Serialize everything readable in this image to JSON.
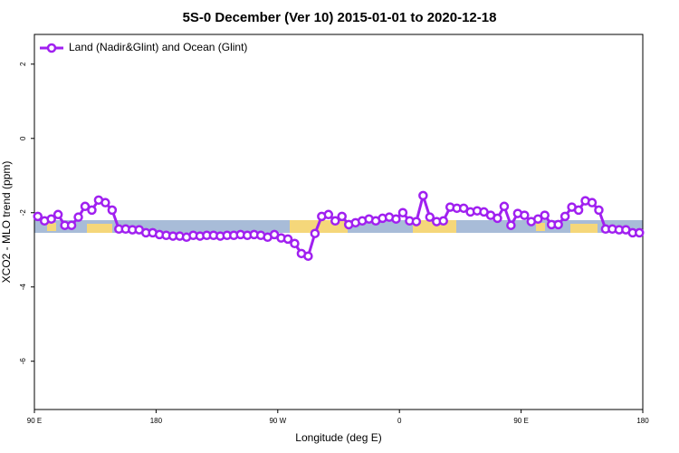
{
  "chart_data": {
    "type": "line",
    "title": "5S-0 December (Ver 10)   2015-01-01 to 2020-12-18",
    "x_label": "Longitude (deg E)",
    "y_label": "XCO2 - MLO trend (ppm)",
    "xlim": [
      90,
      540
    ],
    "ylim": [
      -7.3,
      2.8
    ],
    "xticks": [
      {
        "value": 90,
        "label": "90 E"
      },
      180,
      {
        "value": 270,
        "label": "90 W"
      },
      {
        "value": 360,
        "label": "0"
      },
      {
        "value": 450,
        "label": "90 E"
      },
      {
        "value": 540,
        "label": "180"
      }
    ],
    "yticks": [
      -6,
      -4,
      -2,
      0,
      2
    ],
    "legend": "top-left",
    "x": [
      92.5,
      97.5,
      102.5,
      107.5,
      112.5,
      117.5,
      122.5,
      127.5,
      132.5,
      137.5,
      142.5,
      147.5,
      152.5,
      157.5,
      162.5,
      167.5,
      172.5,
      177.5,
      182.5,
      187.5,
      192.5,
      197.5,
      202.5,
      207.5,
      212.5,
      217.5,
      222.5,
      227.5,
      232.5,
      237.5,
      242.5,
      247.5,
      252.5,
      257.5,
      262.5,
      267.5,
      272.5,
      277.5,
      282.5,
      287.5,
      292.5,
      297.5,
      302.5,
      307.5,
      312.5,
      317.5,
      322.5,
      327.5,
      332.5,
      337.5,
      342.5,
      347.5,
      352.5,
      357.5,
      362.5,
      367.5,
      372.5,
      377.5,
      382.5,
      387.5,
      392.5,
      397.5,
      402.5,
      407.5,
      412.5,
      417.5,
      422.5,
      427.5,
      432.5,
      437.5,
      442.5,
      447.5,
      452.5,
      457.5,
      462.5,
      467.5,
      472.5,
      477.5,
      482.5,
      487.5,
      492.5,
      497.5,
      502.5,
      507.5,
      512.5,
      517.5,
      522.5,
      527.5,
      532.5,
      537.5
    ],
    "series": [
      {
        "name": "Land (Nadir&Glint) and Ocean (Glint)",
        "color": "#a020f0",
        "values": [
          -2.1,
          -2.22,
          -2.17,
          -2.05,
          -2.34,
          -2.34,
          -2.12,
          -1.83,
          -1.93,
          -1.66,
          -1.73,
          -1.93,
          -2.44,
          -2.44,
          -2.46,
          -2.46,
          -2.54,
          -2.54,
          -2.59,
          -2.61,
          -2.63,
          -2.63,
          -2.66,
          -2.61,
          -2.63,
          -2.61,
          -2.61,
          -2.63,
          -2.61,
          -2.61,
          -2.59,
          -2.61,
          -2.59,
          -2.61,
          -2.66,
          -2.59,
          -2.68,
          -2.71,
          -2.83,
          -3.1,
          -3.17,
          -2.56,
          -2.1,
          -2.05,
          -2.22,
          -2.1,
          -2.32,
          -2.27,
          -2.22,
          -2.17,
          -2.22,
          -2.15,
          -2.12,
          -2.17,
          -2.0,
          -2.22,
          -2.24,
          -1.54,
          -2.12,
          -2.24,
          -2.22,
          -1.85,
          -1.88,
          -1.88,
          -1.98,
          -1.95,
          -1.98,
          -2.07,
          -2.15,
          -1.83,
          -2.34,
          -2.02,
          -2.07,
          -2.24,
          -2.17,
          -2.07,
          -2.32,
          -2.32,
          -2.1,
          -1.85,
          -1.93,
          -1.68,
          -1.73,
          -1.93,
          -2.44,
          -2.44,
          -2.46,
          -2.46,
          -2.54,
          -2.54
        ]
      }
    ]
  }
}
